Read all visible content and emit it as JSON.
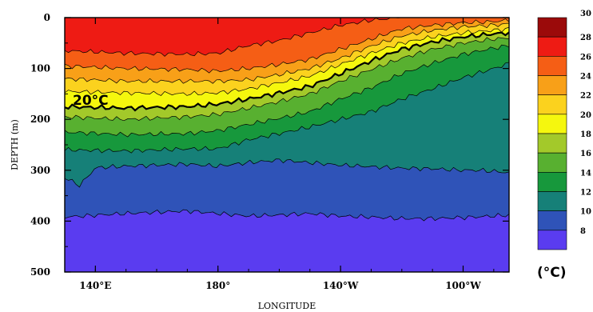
{
  "chart_data": {
    "type": "heatmap",
    "title": "",
    "xlabel": "LONGITUDE",
    "ylabel": "DEPTH (m)",
    "x_ticks": [
      "140°E",
      "180°",
      "140°W",
      "100°W"
    ],
    "x_tick_values": [
      140,
      180,
      220,
      260
    ],
    "xlim": [
      130,
      275
    ],
    "y_ticks": [
      "0",
      "100",
      "200",
      "300",
      "400",
      "500"
    ],
    "y_tick_values": [
      0,
      100,
      200,
      300,
      400,
      500
    ],
    "ylim": [
      0,
      500
    ],
    "y_inverted": true,
    "isotherm_label": "20°C",
    "colorbar": {
      "unit_label": "(°C)",
      "levels": [
        "30",
        "28",
        "26",
        "24",
        "22",
        "20",
        "18",
        "16",
        "14",
        "12",
        "10",
        "8"
      ],
      "colors": [
        "#9b0a0a",
        "#ee1b14",
        "#f55e15",
        "#f8a018",
        "#fbd21e",
        "#f5f70e",
        "#a3c92a",
        "#58b030",
        "#17983c",
        "#168078",
        "#2f53b8",
        "#5a3cf0"
      ]
    },
    "isotherms": [
      {
        "temp": 28,
        "lon": [
          130,
          150,
          170,
          180,
          190,
          200,
          210,
          220,
          230,
          240,
          250,
          255,
          260,
          265,
          270,
          275
        ],
        "depth": [
          65,
          70,
          72,
          70,
          55,
          45,
          30,
          15,
          5,
          0,
          0,
          0,
          0,
          0,
          0,
          0
        ]
      },
      {
        "temp": 26,
        "lon": [
          130,
          150,
          170,
          180,
          190,
          200,
          210,
          220,
          230,
          240,
          250,
          260,
          270,
          275
        ],
        "depth": [
          95,
          100,
          102,
          105,
          100,
          92,
          82,
          62,
          42,
          22,
          15,
          10,
          8,
          5
        ]
      },
      {
        "temp": 24,
        "lon": [
          130,
          150,
          170,
          180,
          190,
          200,
          210,
          220,
          230,
          240,
          250,
          260,
          270,
          275
        ],
        "depth": [
          120,
          125,
          125,
          125,
          122,
          112,
          100,
          80,
          56,
          36,
          25,
          18,
          15,
          12
        ]
      },
      {
        "temp": 22,
        "lon": [
          130,
          150,
          170,
          180,
          190,
          200,
          210,
          220,
          230,
          240,
          250,
          260,
          270,
          275
        ],
        "depth": [
          145,
          148,
          150,
          148,
          140,
          128,
          115,
          92,
          70,
          50,
          38,
          30,
          25,
          22
        ]
      },
      {
        "temp": 20,
        "lon": [
          130,
          150,
          170,
          180,
          190,
          200,
          210,
          220,
          230,
          240,
          250,
          260,
          270,
          275
        ],
        "depth": [
          175,
          178,
          175,
          170,
          160,
          148,
          135,
          110,
          85,
          62,
          48,
          38,
          32,
          30
        ]
      },
      {
        "temp": 18,
        "lon": [
          130,
          150,
          170,
          180,
          190,
          200,
          210,
          220,
          230,
          240,
          250,
          260,
          270,
          275
        ],
        "depth": [
          195,
          200,
          195,
          190,
          178,
          165,
          150,
          125,
          102,
          80,
          62,
          50,
          42,
          40
        ]
      },
      {
        "temp": 16,
        "lon": [
          130,
          150,
          170,
          180,
          190,
          200,
          210,
          220,
          230,
          240,
          250,
          260,
          270,
          275
        ],
        "depth": [
          225,
          230,
          228,
          222,
          210,
          198,
          185,
          160,
          138,
          110,
          90,
          72,
          60,
          55
        ]
      },
      {
        "temp": 14,
        "lon": [
          130,
          150,
          170,
          180,
          190,
          200,
          210,
          220,
          230,
          240,
          250,
          260,
          270,
          275
        ],
        "depth": [
          260,
          262,
          258,
          258,
          240,
          228,
          215,
          200,
          185,
          160,
          140,
          118,
          100,
          90
        ]
      },
      {
        "temp": 12,
        "lon": [
          130,
          135,
          140,
          150,
          170,
          180,
          190,
          200,
          210,
          220,
          230,
          240,
          250,
          260,
          265,
          270,
          275
        ],
        "depth": [
          315,
          330,
          295,
          292,
          288,
          292,
          285,
          280,
          285,
          290,
          293,
          296,
          297,
          300,
          300,
          302,
          305
        ]
      },
      {
        "temp": 10,
        "lon": [
          130,
          150,
          170,
          180,
          190,
          200,
          210,
          220,
          230,
          240,
          250,
          260,
          270,
          275
        ],
        "depth": [
          392,
          385,
          380,
          385,
          390,
          388,
          385,
          390,
          392,
          395,
          395,
          393,
          390,
          388
        ]
      }
    ]
  }
}
